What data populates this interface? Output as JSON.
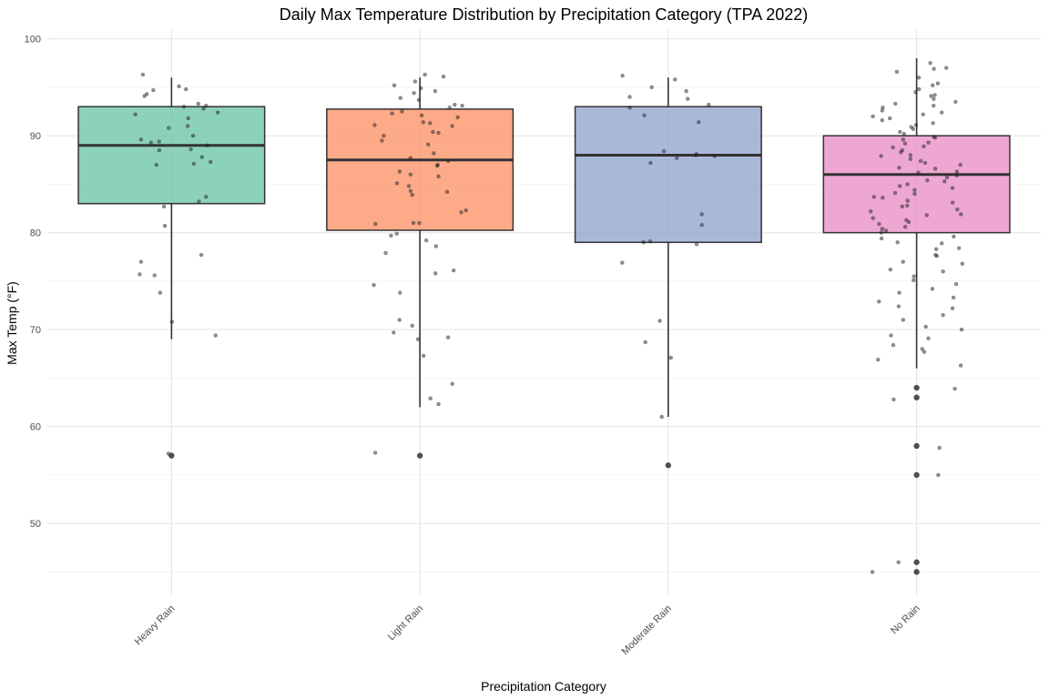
{
  "chart_data": {
    "type": "boxplot",
    "title": "Daily Max Temperature Distribution by Precipitation Category (TPA 2022)",
    "xlabel": "Precipitation Category",
    "ylabel": "Max Temp (°F)",
    "ylim": [
      42.5,
      101
    ],
    "yticks": [
      50,
      60,
      70,
      80,
      90,
      100
    ],
    "grid": true,
    "legend": "none",
    "categories": [
      "Heavy Rain",
      "Light Rain",
      "Moderate Rain",
      "No Rain"
    ],
    "colors": [
      "#66c2a5",
      "#fc8d62",
      "#8da0cb",
      "#e78ac3"
    ],
    "boxes": [
      {
        "category": "Heavy Rain",
        "min": 69,
        "q1": 83,
        "median": 89,
        "q3": 93,
        "max": 96,
        "outliers": [
          57
        ]
      },
      {
        "category": "Light Rain",
        "min": 62,
        "q1": 80.25,
        "median": 87.5,
        "q3": 92.75,
        "max": 96,
        "outliers": [
          57
        ]
      },
      {
        "category": "Moderate Rain",
        "min": 61,
        "q1": 79,
        "median": 88,
        "q3": 93,
        "max": 96,
        "outliers": [
          56
        ]
      },
      {
        "category": "No Rain",
        "min": 66,
        "q1": 80,
        "median": 86,
        "q3": 90,
        "max": 98,
        "outliers": [
          64,
          63,
          58,
          55,
          46,
          45
        ]
      }
    ],
    "jitter_points": [
      {
        "category": "Heavy Rain",
        "y": [
          94.8,
          94.7,
          93.0,
          92.4,
          91.8,
          91.0,
          89.6,
          89.0,
          88.6,
          87.8,
          87.1,
          87.0,
          83.2,
          96.3,
          95.1,
          94.3,
          94.1,
          93.3,
          93.1,
          92.8,
          92.2,
          90.8,
          90.0,
          89.4,
          89.3,
          88.5,
          87.3,
          83.7,
          82.7,
          80.7,
          77.7,
          77.0,
          75.7,
          75.6,
          73.8,
          70.8,
          69.4,
          57.2
        ]
      },
      {
        "category": "Light Rain",
        "y": [
          96.1,
          95.2,
          94.4,
          93.2,
          92.9,
          92.5,
          91.4,
          91.0,
          90.3,
          90.0,
          89.1,
          89.5,
          87.0,
          86.0,
          85.8,
          85.1,
          84.8,
          84.3,
          83.9,
          82.1,
          81.0,
          80.9,
          79.9,
          77.9,
          75.8,
          74.6,
          73.8,
          71.0,
          70.4,
          69.7,
          69.2,
          69.0,
          67.3,
          64.4,
          62.9,
          62.3,
          57.3,
          96.3,
          95.6,
          94.9,
          94.6,
          93.9,
          93.7,
          93.1,
          92.3,
          92.1,
          91.9,
          91.3,
          91.1,
          90.4,
          88.2,
          87.7,
          87.4,
          86.9,
          86.3,
          84.2,
          82.3,
          81.0,
          79.7,
          79.2,
          78.6,
          76.1
        ]
      },
      {
        "category": "Moderate Rain",
        "y": [
          95.8,
          94.6,
          94.0,
          93.2,
          92.9,
          92.1,
          88.4,
          88.1,
          87.2,
          80.8,
          79.0,
          78.8,
          70.9,
          61.0,
          96.2,
          95.0,
          93.8,
          91.4,
          88.0,
          87.9,
          87.7,
          81.9,
          79.1,
          76.9,
          68.7,
          67.1
        ]
      },
      {
        "category": "No Rain",
        "y": [
          97.5,
          96.9,
          95.2,
          94.5,
          94.1,
          93.5,
          93.1,
          92.6,
          92.2,
          91.8,
          91.3,
          90.9,
          90.4,
          89.9,
          89.6,
          89.2,
          88.8,
          88.3,
          87.9,
          87.4,
          87.0,
          86.6,
          86.2,
          85.7,
          85.3,
          84.8,
          84.4,
          84.0,
          83.6,
          83.1,
          82.7,
          82.2,
          81.8,
          81.3,
          80.9,
          80.4,
          80.0,
          79.4,
          78.9,
          78.3,
          77.7,
          77.0,
          76.2,
          75.5,
          74.7,
          73.8,
          72.9,
          72.2,
          71.0,
          70.0,
          69.4,
          68.4,
          67.7,
          66.3,
          62.8,
          55.0,
          46.0,
          97.0,
          96.6,
          96.0,
          95.4,
          94.8,
          94.2,
          93.8,
          93.3,
          92.9,
          92.4,
          92.0,
          91.6,
          91.1,
          90.7,
          90.2,
          89.8,
          89.3,
          88.9,
          88.5,
          88.0,
          87.6,
          87.2,
          86.7,
          86.3,
          85.9,
          85.4,
          85.0,
          84.6,
          84.1,
          83.7,
          83.3,
          82.8,
          82.4,
          81.9,
          81.5,
          81.1,
          80.6,
          80.2,
          79.6,
          79.0,
          78.4,
          77.6,
          76.8,
          76.0,
          75.1,
          74.2,
          73.3,
          72.4,
          71.5,
          70.3,
          69.1,
          68.0,
          66.9,
          63.9,
          57.8,
          45.0
        ]
      }
    ]
  }
}
